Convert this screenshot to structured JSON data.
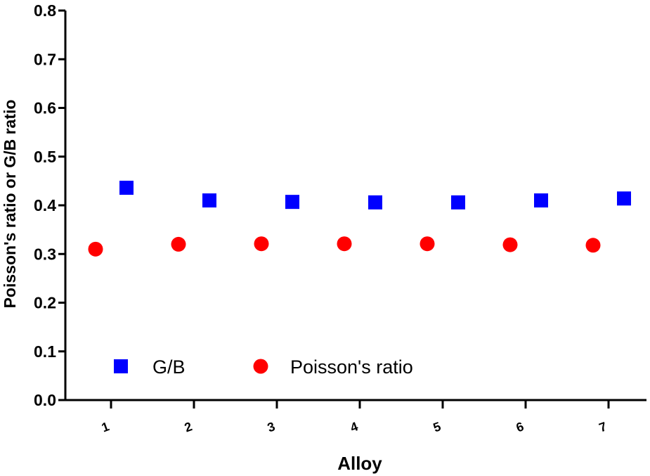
{
  "chart_data": {
    "type": "scatter",
    "title": "",
    "xlabel": "Alloy",
    "ylabel": "Poisson's ratio or G/B ratio",
    "categories": [
      "1",
      "2",
      "3",
      "4",
      "5",
      "6",
      "7"
    ],
    "ylim": [
      0.0,
      0.8
    ],
    "yticks": [
      "0.0",
      "0.1",
      "0.2",
      "0.3",
      "0.4",
      "0.5",
      "0.6",
      "0.7",
      "0.8"
    ],
    "grid": false,
    "legend_position": "bottom-left",
    "series": [
      {
        "name": "G/B",
        "marker": "square",
        "color": "#0000ff",
        "values": [
          0.436,
          0.41,
          0.407,
          0.406,
          0.406,
          0.41,
          0.414
        ]
      },
      {
        "name": "Poisson's ratio",
        "marker": "circle",
        "color": "#ff0000",
        "values": [
          0.31,
          0.32,
          0.321,
          0.321,
          0.321,
          0.319,
          0.318
        ]
      }
    ]
  }
}
